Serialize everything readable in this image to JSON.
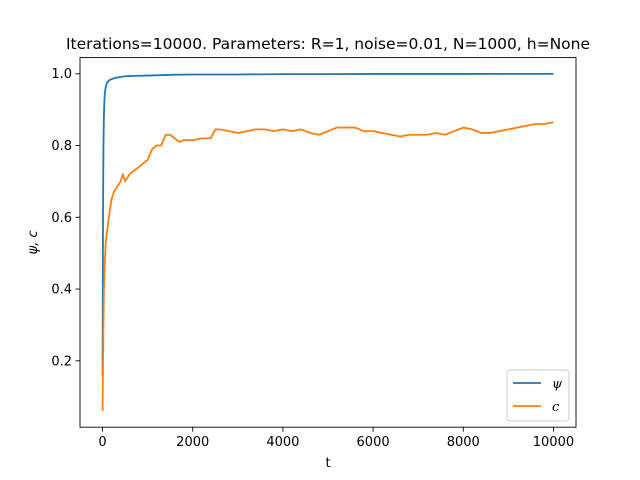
{
  "chart_data": {
    "type": "line",
    "title": "Iterations=10000. Parameters: R=1, noise=0.01, N=1000, h=None",
    "xlabel": "t",
    "ylabel": "ψ, c",
    "xlim": [
      -500,
      10500
    ],
    "ylim": [
      0.015,
      1.045
    ],
    "xticks": [
      0,
      2000,
      4000,
      6000,
      8000,
      10000
    ],
    "xtick_labels": [
      "0",
      "2000",
      "4000",
      "6000",
      "8000",
      "10000"
    ],
    "yticks": [
      0.2,
      0.4,
      0.6,
      0.8,
      1.0
    ],
    "ytick_labels": [
      "0.2",
      "0.4",
      "0.6",
      "0.8",
      "1.0"
    ],
    "grid": false,
    "legend_position": "lower-right",
    "series": [
      {
        "name": "ψ",
        "color": "#1f77b4",
        "x": [
          0,
          10,
          20,
          30,
          40,
          50,
          70,
          100,
          150,
          200,
          300,
          400,
          500,
          700,
          1000,
          1500,
          2000,
          3000,
          4000,
          5000,
          6000,
          7000,
          8000,
          9000,
          10000
        ],
        "y": [
          0.16,
          0.6,
          0.8,
          0.88,
          0.92,
          0.945,
          0.963,
          0.975,
          0.982,
          0.985,
          0.989,
          0.991,
          0.993,
          0.994,
          0.995,
          0.997,
          0.998,
          0.998,
          0.999,
          0.999,
          0.9995,
          0.9995,
          0.9995,
          0.9997,
          0.9997
        ]
      },
      {
        "name": "c",
        "color": "#ff7f0e",
        "x": [
          0,
          10,
          20,
          30,
          50,
          70,
          100,
          130,
          160,
          200,
          250,
          300,
          350,
          400,
          450,
          500,
          550,
          600,
          700,
          800,
          900,
          1000,
          1100,
          1200,
          1300,
          1400,
          1500,
          1600,
          1700,
          1800,
          1900,
          2000,
          2200,
          2400,
          2500,
          2600,
          2800,
          3000,
          3200,
          3400,
          3600,
          3800,
          4000,
          4200,
          4400,
          4600,
          4800,
          5000,
          5200,
          5400,
          5600,
          5800,
          6000,
          6200,
          6400,
          6600,
          6800,
          7000,
          7200,
          7400,
          7600,
          7800,
          7900,
          8000,
          8200,
          8400,
          8600,
          8800,
          9000,
          9200,
          9400,
          9600,
          9800,
          10000
        ],
        "y": [
          0.06,
          0.18,
          0.3,
          0.4,
          0.47,
          0.53,
          0.56,
          0.59,
          0.62,
          0.65,
          0.67,
          0.68,
          0.69,
          0.7,
          0.72,
          0.7,
          0.71,
          0.72,
          0.73,
          0.74,
          0.75,
          0.76,
          0.79,
          0.8,
          0.8,
          0.83,
          0.83,
          0.82,
          0.81,
          0.815,
          0.815,
          0.815,
          0.82,
          0.82,
          0.845,
          0.845,
          0.84,
          0.835,
          0.84,
          0.845,
          0.845,
          0.84,
          0.845,
          0.84,
          0.845,
          0.835,
          0.83,
          0.84,
          0.85,
          0.85,
          0.85,
          0.84,
          0.84,
          0.835,
          0.83,
          0.825,
          0.83,
          0.83,
          0.83,
          0.835,
          0.83,
          0.84,
          0.845,
          0.85,
          0.845,
          0.835,
          0.835,
          0.84,
          0.845,
          0.85,
          0.855,
          0.86,
          0.86,
          0.865
        ]
      }
    ]
  }
}
